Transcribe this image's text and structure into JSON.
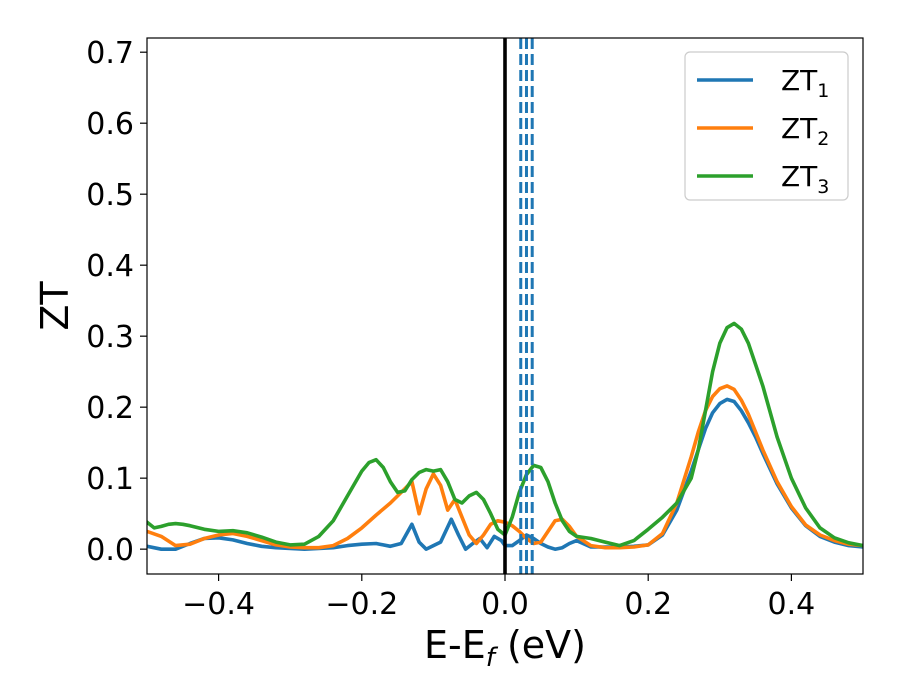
{
  "chart_data": {
    "type": "line",
    "xlabel": {
      "main": "E-E",
      "sub": "f",
      "unit": " (eV)"
    },
    "ylabel": "ZT",
    "xlim": [
      -0.5,
      0.5
    ],
    "ylim": [
      -0.035,
      0.72
    ],
    "xticks": [
      {
        "v": -0.4,
        "label": "−0.4"
      },
      {
        "v": -0.2,
        "label": "−0.2"
      },
      {
        "v": 0.0,
        "label": "0.0"
      },
      {
        "v": 0.2,
        "label": "0.2"
      },
      {
        "v": 0.4,
        "label": "0.4"
      }
    ],
    "yticks": [
      {
        "v": 0.0,
        "label": "0.0"
      },
      {
        "v": 0.1,
        "label": "0.1"
      },
      {
        "v": 0.2,
        "label": "0.2"
      },
      {
        "v": 0.3,
        "label": "0.3"
      },
      {
        "v": 0.4,
        "label": "0.4"
      },
      {
        "v": 0.5,
        "label": "0.5"
      },
      {
        "v": 0.6,
        "label": "0.6"
      },
      {
        "v": 0.7,
        "label": "0.7"
      }
    ],
    "grid": false,
    "legend": {
      "placement": "top-right",
      "entries": [
        {
          "main": "ZT",
          "sub": "1",
          "color": "#1f77b4"
        },
        {
          "main": "ZT",
          "sub": "2",
          "color": "#ff7f0e"
        },
        {
          "main": "ZT",
          "sub": "3",
          "color": "#2ca02c"
        }
      ]
    },
    "reference_lines": [
      {
        "x": 0.0,
        "color": "#000000",
        "style": "solid"
      },
      {
        "x": 0.022,
        "color": "#1f77b4",
        "style": "dashed"
      },
      {
        "x": 0.03,
        "color": "#1f77b4",
        "style": "dashed"
      },
      {
        "x": 0.038,
        "color": "#1f77b4",
        "style": "dashed"
      }
    ],
    "series": [
      {
        "name": "ZT1",
        "color": "#1f77b4",
        "x": [
          -0.5,
          -0.48,
          -0.46,
          -0.44,
          -0.42,
          -0.4,
          -0.38,
          -0.36,
          -0.34,
          -0.32,
          -0.3,
          -0.28,
          -0.26,
          -0.24,
          -0.22,
          -0.2,
          -0.18,
          -0.16,
          -0.145,
          -0.13,
          -0.12,
          -0.11,
          -0.1,
          -0.09,
          -0.075,
          -0.065,
          -0.055,
          -0.045,
          -0.035,
          -0.025,
          -0.015,
          -0.005,
          0.0,
          0.01,
          0.02,
          0.03,
          0.04,
          0.05,
          0.06,
          0.07,
          0.08,
          0.09,
          0.1,
          0.12,
          0.14,
          0.16,
          0.18,
          0.2,
          0.22,
          0.24,
          0.26,
          0.27,
          0.28,
          0.29,
          0.3,
          0.31,
          0.32,
          0.33,
          0.34,
          0.35,
          0.36,
          0.38,
          0.4,
          0.42,
          0.44,
          0.46,
          0.48,
          0.5
        ],
        "y": [
          0.004,
          0.0,
          0.0,
          0.008,
          0.015,
          0.016,
          0.013,
          0.008,
          0.004,
          0.002,
          0.001,
          0.0,
          0.001,
          0.002,
          0.005,
          0.007,
          0.008,
          0.004,
          0.008,
          0.035,
          0.01,
          0.0,
          0.005,
          0.01,
          0.042,
          0.02,
          0.0,
          0.008,
          0.015,
          0.002,
          0.018,
          0.012,
          0.005,
          0.005,
          0.012,
          0.02,
          0.015,
          0.008,
          0.003,
          0.0,
          0.002,
          0.008,
          0.012,
          0.003,
          0.003,
          0.003,
          0.004,
          0.006,
          0.02,
          0.055,
          0.11,
          0.14,
          0.17,
          0.192,
          0.205,
          0.211,
          0.208,
          0.195,
          0.178,
          0.158,
          0.135,
          0.092,
          0.058,
          0.033,
          0.018,
          0.01,
          0.005,
          0.003
        ]
      },
      {
        "name": "ZT2",
        "color": "#ff7f0e",
        "x": [
          -0.5,
          -0.48,
          -0.46,
          -0.44,
          -0.42,
          -0.4,
          -0.38,
          -0.36,
          -0.34,
          -0.32,
          -0.3,
          -0.28,
          -0.26,
          -0.24,
          -0.22,
          -0.2,
          -0.18,
          -0.16,
          -0.145,
          -0.13,
          -0.12,
          -0.11,
          -0.1,
          -0.09,
          -0.08,
          -0.07,
          -0.06,
          -0.05,
          -0.04,
          -0.03,
          -0.02,
          -0.01,
          0.0,
          0.01,
          0.02,
          0.03,
          0.04,
          0.05,
          0.06,
          0.07,
          0.08,
          0.09,
          0.1,
          0.12,
          0.14,
          0.16,
          0.18,
          0.2,
          0.22,
          0.24,
          0.26,
          0.27,
          0.28,
          0.29,
          0.3,
          0.31,
          0.32,
          0.33,
          0.34,
          0.35,
          0.36,
          0.38,
          0.4,
          0.42,
          0.44,
          0.46,
          0.48,
          0.5
        ],
        "y": [
          0.025,
          0.018,
          0.005,
          0.007,
          0.015,
          0.02,
          0.022,
          0.018,
          0.012,
          0.006,
          0.003,
          0.002,
          0.002,
          0.005,
          0.015,
          0.03,
          0.048,
          0.065,
          0.08,
          0.095,
          0.05,
          0.085,
          0.106,
          0.09,
          0.055,
          0.07,
          0.045,
          0.02,
          0.008,
          0.02,
          0.035,
          0.04,
          0.038,
          0.033,
          0.025,
          0.015,
          0.008,
          0.01,
          0.025,
          0.04,
          0.042,
          0.032,
          0.018,
          0.005,
          0.002,
          0.002,
          0.003,
          0.006,
          0.022,
          0.065,
          0.13,
          0.165,
          0.195,
          0.215,
          0.226,
          0.23,
          0.225,
          0.21,
          0.19,
          0.165,
          0.14,
          0.095,
          0.06,
          0.034,
          0.02,
          0.012,
          0.007,
          0.005
        ]
      },
      {
        "name": "ZT3",
        "color": "#2ca02c",
        "x": [
          -0.5,
          -0.49,
          -0.48,
          -0.47,
          -0.46,
          -0.45,
          -0.44,
          -0.42,
          -0.4,
          -0.38,
          -0.36,
          -0.34,
          -0.32,
          -0.3,
          -0.28,
          -0.26,
          -0.24,
          -0.22,
          -0.2,
          -0.19,
          -0.18,
          -0.17,
          -0.16,
          -0.15,
          -0.14,
          -0.13,
          -0.12,
          -0.11,
          -0.1,
          -0.09,
          -0.08,
          -0.07,
          -0.06,
          -0.05,
          -0.04,
          -0.03,
          -0.02,
          -0.01,
          0.0,
          0.01,
          0.02,
          0.03,
          0.04,
          0.05,
          0.06,
          0.07,
          0.08,
          0.09,
          0.1,
          0.12,
          0.14,
          0.16,
          0.18,
          0.2,
          0.22,
          0.24,
          0.26,
          0.27,
          0.28,
          0.29,
          0.3,
          0.31,
          0.32,
          0.33,
          0.34,
          0.35,
          0.36,
          0.38,
          0.4,
          0.42,
          0.44,
          0.46,
          0.48,
          0.5
        ],
        "y": [
          0.038,
          0.03,
          0.032,
          0.035,
          0.036,
          0.035,
          0.033,
          0.028,
          0.025,
          0.026,
          0.023,
          0.017,
          0.01,
          0.006,
          0.007,
          0.018,
          0.04,
          0.075,
          0.11,
          0.122,
          0.126,
          0.115,
          0.095,
          0.08,
          0.082,
          0.098,
          0.108,
          0.112,
          0.11,
          0.112,
          0.095,
          0.07,
          0.065,
          0.075,
          0.08,
          0.07,
          0.05,
          0.028,
          0.02,
          0.045,
          0.08,
          0.105,
          0.118,
          0.115,
          0.095,
          0.065,
          0.04,
          0.025,
          0.018,
          0.015,
          0.01,
          0.005,
          0.012,
          0.028,
          0.045,
          0.065,
          0.1,
          0.14,
          0.195,
          0.25,
          0.29,
          0.312,
          0.318,
          0.31,
          0.29,
          0.26,
          0.23,
          0.158,
          0.1,
          0.058,
          0.03,
          0.016,
          0.009,
          0.005
        ]
      }
    ]
  }
}
